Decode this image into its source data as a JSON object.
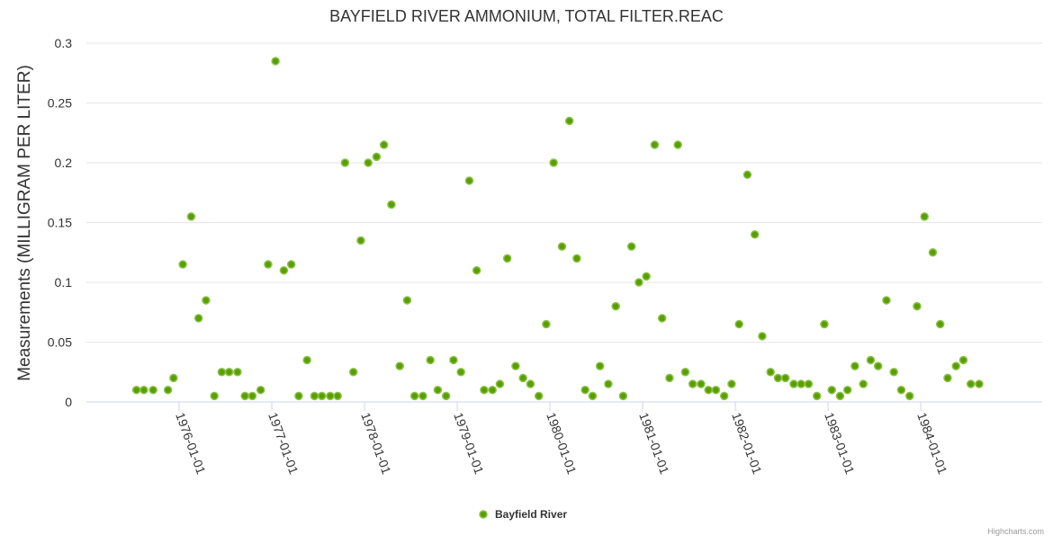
{
  "chart_data": {
    "type": "scatter",
    "title": "BAYFIELD RIVER AMMONIUM, TOTAL FILTER.REAC",
    "ylabel": "Measurements (MILLIGRAM PER LITER)",
    "xlabel": "",
    "ylim": [
      0,
      0.3
    ],
    "y_ticks": [
      {
        "value": 0,
        "label": "0"
      },
      {
        "value": 0.05,
        "label": "0.05"
      },
      {
        "value": 0.1,
        "label": "0.1"
      },
      {
        "value": 0.15,
        "label": "0.15"
      },
      {
        "value": 0.2,
        "label": "0.2"
      },
      {
        "value": 0.25,
        "label": "0.25"
      },
      {
        "value": 0.3,
        "label": "0.3"
      }
    ],
    "xlim": [
      1975.0,
      1985.31
    ],
    "x_ticks": [
      {
        "value": 1976.0,
        "label": "1976-01-01"
      },
      {
        "value": 1977.0,
        "label": "1977-01-01"
      },
      {
        "value": 1978.0,
        "label": "1978-01-01"
      },
      {
        "value": 1979.0,
        "label": "1979-01-01"
      },
      {
        "value": 1980.0,
        "label": "1980-01-01"
      },
      {
        "value": 1981.0,
        "label": "1981-01-01"
      },
      {
        "value": 1982.0,
        "label": "1982-01-01"
      },
      {
        "value": 1983.0,
        "label": "1983-01-01"
      },
      {
        "value": 1984.0,
        "label": "1984-01-01"
      }
    ],
    "grid": true,
    "legend_position": "bottom-center",
    "series": [
      {
        "name": "Bayfield River",
        "color": "#5a9e00",
        "border_color": "#8bc34a",
        "points": [
          [
            1975.54,
            0.01
          ],
          [
            1975.62,
            0.01
          ],
          [
            1975.72,
            0.01
          ],
          [
            1975.88,
            0.01
          ],
          [
            1975.94,
            0.02
          ],
          [
            1976.04,
            0.115
          ],
          [
            1976.13,
            0.155
          ],
          [
            1976.21,
            0.07
          ],
          [
            1976.29,
            0.085
          ],
          [
            1976.38,
            0.005
          ],
          [
            1976.46,
            0.025
          ],
          [
            1976.54,
            0.025
          ],
          [
            1976.63,
            0.025
          ],
          [
            1976.71,
            0.005
          ],
          [
            1976.79,
            0.005
          ],
          [
            1976.88,
            0.01
          ],
          [
            1976.96,
            0.115
          ],
          [
            1977.04,
            0.285
          ],
          [
            1977.13,
            0.11
          ],
          [
            1977.21,
            0.115
          ],
          [
            1977.29,
            0.005
          ],
          [
            1977.38,
            0.035
          ],
          [
            1977.46,
            0.005
          ],
          [
            1977.54,
            0.005
          ],
          [
            1977.63,
            0.005
          ],
          [
            1977.71,
            0.005
          ],
          [
            1977.79,
            0.2
          ],
          [
            1977.88,
            0.025
          ],
          [
            1977.96,
            0.135
          ],
          [
            1978.04,
            0.2
          ],
          [
            1978.13,
            0.205
          ],
          [
            1978.21,
            0.215
          ],
          [
            1978.29,
            0.165
          ],
          [
            1978.38,
            0.03
          ],
          [
            1978.46,
            0.085
          ],
          [
            1978.54,
            0.005
          ],
          [
            1978.63,
            0.005
          ],
          [
            1978.71,
            0.035
          ],
          [
            1978.79,
            0.01
          ],
          [
            1978.88,
            0.005
          ],
          [
            1978.96,
            0.035
          ],
          [
            1979.04,
            0.025
          ],
          [
            1979.13,
            0.185
          ],
          [
            1979.21,
            0.11
          ],
          [
            1979.29,
            0.01
          ],
          [
            1979.38,
            0.01
          ],
          [
            1979.46,
            0.015
          ],
          [
            1979.54,
            0.12
          ],
          [
            1979.63,
            0.03
          ],
          [
            1979.71,
            0.02
          ],
          [
            1979.79,
            0.015
          ],
          [
            1979.88,
            0.005
          ],
          [
            1979.96,
            0.065
          ],
          [
            1980.04,
            0.2
          ],
          [
            1980.13,
            0.13
          ],
          [
            1980.21,
            0.235
          ],
          [
            1980.29,
            0.12
          ],
          [
            1980.38,
            0.01
          ],
          [
            1980.46,
            0.005
          ],
          [
            1980.54,
            0.03
          ],
          [
            1980.63,
            0.015
          ],
          [
            1980.71,
            0.08
          ],
          [
            1980.79,
            0.005
          ],
          [
            1980.88,
            0.13
          ],
          [
            1980.96,
            0.1
          ],
          [
            1981.04,
            0.105
          ],
          [
            1981.13,
            0.215
          ],
          [
            1981.21,
            0.07
          ],
          [
            1981.29,
            0.02
          ],
          [
            1981.38,
            0.215
          ],
          [
            1981.46,
            0.025
          ],
          [
            1981.54,
            0.015
          ],
          [
            1981.63,
            0.015
          ],
          [
            1981.71,
            0.01
          ],
          [
            1981.79,
            0.01
          ],
          [
            1981.88,
            0.005
          ],
          [
            1981.96,
            0.015
          ],
          [
            1982.04,
            0.065
          ],
          [
            1982.13,
            0.19
          ],
          [
            1982.21,
            0.14
          ],
          [
            1982.29,
            0.055
          ],
          [
            1982.38,
            0.025
          ],
          [
            1982.46,
            0.02
          ],
          [
            1982.54,
            0.02
          ],
          [
            1982.63,
            0.015
          ],
          [
            1982.71,
            0.015
          ],
          [
            1982.79,
            0.015
          ],
          [
            1982.88,
            0.005
          ],
          [
            1982.96,
            0.065
          ],
          [
            1983.04,
            0.01
          ],
          [
            1983.13,
            0.005
          ],
          [
            1983.21,
            0.01
          ],
          [
            1983.29,
            0.03
          ],
          [
            1983.38,
            0.015
          ],
          [
            1983.46,
            0.035
          ],
          [
            1983.54,
            0.03
          ],
          [
            1983.63,
            0.085
          ],
          [
            1983.71,
            0.025
          ],
          [
            1983.79,
            0.01
          ],
          [
            1983.88,
            0.005
          ],
          [
            1983.96,
            0.08
          ],
          [
            1984.04,
            0.155
          ],
          [
            1984.13,
            0.125
          ],
          [
            1984.21,
            0.065
          ],
          [
            1984.29,
            0.02
          ],
          [
            1984.38,
            0.03
          ],
          [
            1984.46,
            0.035
          ],
          [
            1984.54,
            0.015
          ],
          [
            1984.63,
            0.015
          ]
        ]
      }
    ]
  },
  "credits": "Highcharts.com"
}
